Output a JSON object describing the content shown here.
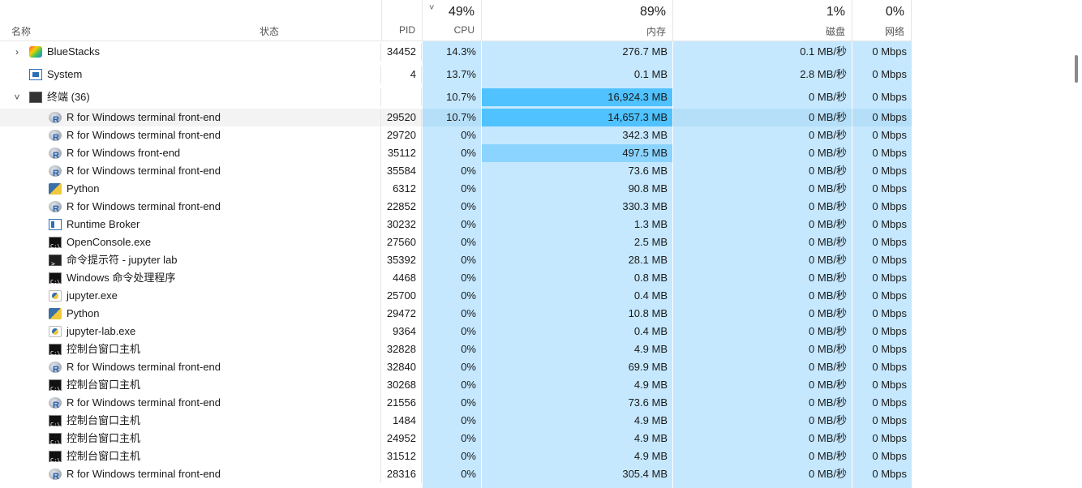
{
  "header": {
    "name_label": "名称",
    "status_label": "状态",
    "pid_label": "PID",
    "cpu": {
      "pct": "49%",
      "label": "CPU"
    },
    "memory": {
      "pct": "89%",
      "label": "内存"
    },
    "disk": {
      "pct": "1%",
      "label": "磁盘"
    },
    "network": {
      "pct": "0%",
      "label": "网络"
    },
    "sort_indicator": "˅"
  },
  "colors": {
    "heat_light": "#c5e8ff",
    "heat_mid": "#8ad4ff",
    "heat_strong": "#4fc2ff",
    "row_highlight": "#f3f3f3"
  },
  "rows": [
    {
      "name": "BlueStacks",
      "icon": "bluestacks-icon",
      "expand": "›",
      "pid": "34452",
      "cpu": "14.3%",
      "mem": "276.7 MB",
      "disk": "0.1 MB/秒",
      "net": "0 Mbps"
    },
    {
      "name": "System",
      "icon": "system-icon",
      "expand": "",
      "pid": "4",
      "cpu": "13.7%",
      "mem": "0.1 MB",
      "disk": "2.8 MB/秒",
      "net": "0 Mbps"
    },
    {
      "name": "终端 (36)",
      "icon": "terminal-icon",
      "expand": "˅",
      "pid": "",
      "cpu": "10.7%",
      "mem": "16,924.3 MB",
      "disk": "0 MB/秒",
      "net": "0 Mbps"
    },
    {
      "name": "R for Windows terminal front-end",
      "icon": "r-icon",
      "pid": "29520",
      "cpu": "10.7%",
      "mem": "14,657.3 MB",
      "disk": "0 MB/秒",
      "net": "0 Mbps"
    },
    {
      "name": "R for Windows terminal front-end",
      "icon": "r-icon",
      "pid": "29720",
      "cpu": "0%",
      "mem": "342.3 MB",
      "disk": "0 MB/秒",
      "net": "0 Mbps"
    },
    {
      "name": "R for Windows front-end",
      "icon": "r-icon",
      "pid": "35112",
      "cpu": "0%",
      "mem": "497.5 MB",
      "disk": "0 MB/秒",
      "net": "0 Mbps"
    },
    {
      "name": "R for Windows terminal front-end",
      "icon": "r-icon",
      "pid": "35584",
      "cpu": "0%",
      "mem": "73.6 MB",
      "disk": "0 MB/秒",
      "net": "0 Mbps"
    },
    {
      "name": "Python",
      "icon": "python-icon",
      "pid": "6312",
      "cpu": "0%",
      "mem": "90.8 MB",
      "disk": "0 MB/秒",
      "net": "0 Mbps"
    },
    {
      "name": "R for Windows terminal front-end",
      "icon": "r-icon",
      "pid": "22852",
      "cpu": "0%",
      "mem": "330.3 MB",
      "disk": "0 MB/秒",
      "net": "0 Mbps"
    },
    {
      "name": "Runtime Broker",
      "icon": "runtime-broker-icon",
      "pid": "30232",
      "cpu": "0%",
      "mem": "1.3 MB",
      "disk": "0 MB/秒",
      "net": "0 Mbps"
    },
    {
      "name": "OpenConsole.exe",
      "icon": "console-icon",
      "pid": "27560",
      "cpu": "0%",
      "mem": "2.5 MB",
      "disk": "0 MB/秒",
      "net": "0 Mbps"
    },
    {
      "name": "命令提示符 - jupyter  lab",
      "icon": "command-prompt-icon",
      "pid": "35392",
      "cpu": "0%",
      "mem": "28.1 MB",
      "disk": "0 MB/秒",
      "net": "0 Mbps"
    },
    {
      "name": "Windows 命令处理程序",
      "icon": "console-icon",
      "pid": "4468",
      "cpu": "0%",
      "mem": "0.8 MB",
      "disk": "0 MB/秒",
      "net": "0 Mbps"
    },
    {
      "name": "jupyter.exe",
      "icon": "jupyter-icon",
      "pid": "25700",
      "cpu": "0%",
      "mem": "0.4 MB",
      "disk": "0 MB/秒",
      "net": "0 Mbps"
    },
    {
      "name": "Python",
      "icon": "python-icon",
      "pid": "29472",
      "cpu": "0%",
      "mem": "10.8 MB",
      "disk": "0 MB/秒",
      "net": "0 Mbps"
    },
    {
      "name": "jupyter-lab.exe",
      "icon": "jupyter-icon",
      "pid": "9364",
      "cpu": "0%",
      "mem": "0.4 MB",
      "disk": "0 MB/秒",
      "net": "0 Mbps"
    },
    {
      "name": "控制台窗口主机",
      "icon": "console-icon",
      "pid": "32828",
      "cpu": "0%",
      "mem": "4.9 MB",
      "disk": "0 MB/秒",
      "net": "0 Mbps"
    },
    {
      "name": "R for Windows terminal front-end",
      "icon": "r-icon",
      "pid": "32840",
      "cpu": "0%",
      "mem": "69.9 MB",
      "disk": "0 MB/秒",
      "net": "0 Mbps"
    },
    {
      "name": "控制台窗口主机",
      "icon": "console-icon",
      "pid": "30268",
      "cpu": "0%",
      "mem": "4.9 MB",
      "disk": "0 MB/秒",
      "net": "0 Mbps"
    },
    {
      "name": "R for Windows terminal front-end",
      "icon": "r-icon",
      "pid": "21556",
      "cpu": "0%",
      "mem": "73.6 MB",
      "disk": "0 MB/秒",
      "net": "0 Mbps"
    },
    {
      "name": "控制台窗口主机",
      "icon": "console-icon",
      "pid": "1484",
      "cpu": "0%",
      "mem": "4.9 MB",
      "disk": "0 MB/秒",
      "net": "0 Mbps"
    },
    {
      "name": "控制台窗口主机",
      "icon": "console-icon",
      "pid": "24952",
      "cpu": "0%",
      "mem": "4.9 MB",
      "disk": "0 MB/秒",
      "net": "0 Mbps"
    },
    {
      "name": "控制台窗口主机",
      "icon": "console-icon",
      "pid": "31512",
      "cpu": "0%",
      "mem": "4.9 MB",
      "disk": "0 MB/秒",
      "net": "0 Mbps"
    },
    {
      "name": "R for Windows terminal front-end",
      "icon": "r-icon",
      "pid": "28316",
      "cpu": "0%",
      "mem": "305.4 MB",
      "disk": "0 MB/秒",
      "net": "0 Mbps"
    }
  ]
}
